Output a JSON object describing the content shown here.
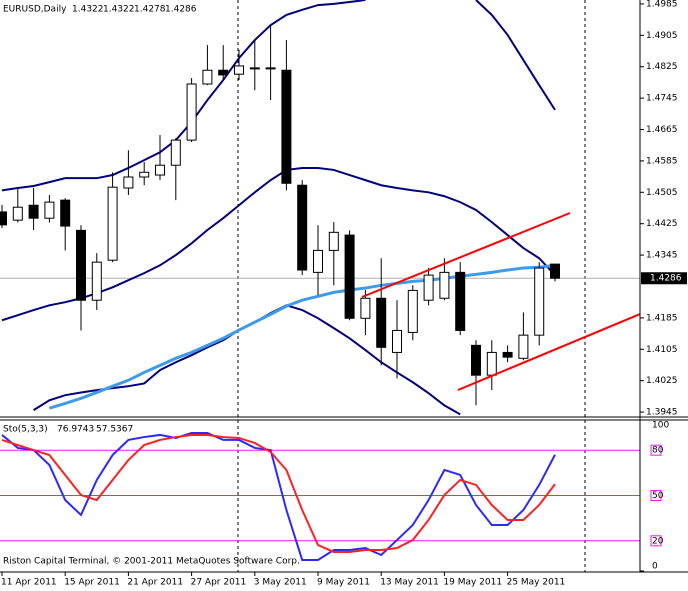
{
  "chart_data": [
    {
      "type": "candlestick",
      "title": "EURUSD,Daily",
      "categories": [
        "11 Apr 2011",
        null,
        null,
        null,
        "15 Apr 2011",
        null,
        null,
        null,
        "21 Apr 2011",
        null,
        null,
        null,
        "27 Apr 2011",
        null,
        null,
        null,
        "3 May 2011",
        null,
        null,
        null,
        "9 May 2011",
        null,
        null,
        null,
        "13 May 2011",
        null,
        null,
        null,
        "19 May 2011",
        null,
        null,
        null,
        "25 May 2011",
        null,
        null,
        null
      ],
      "open": [
        1.4455,
        1.4434,
        1.4472,
        1.4439,
        1.4485,
        1.4408,
        1.423,
        1.4332,
        1.4516,
        1.4544,
        1.4549,
        1.4574,
        1.4638,
        1.4781,
        1.4816,
        1.4806,
        1.4822,
        1.4822,
        1.4816,
        1.4523,
        1.4301,
        1.4357,
        1.4396,
        1.4184,
        1.4235,
        1.4097,
        1.4148,
        1.423,
        1.4235,
        1.4301,
        1.4115,
        1.4039,
        1.4097,
        1.4082,
        1.4141,
        1.4322
      ],
      "high": [
        1.4473,
        1.4516,
        1.4516,
        1.4498,
        1.449,
        1.4421,
        1.435,
        1.4556,
        1.4612,
        1.4582,
        1.4651,
        1.4643,
        1.4796,
        1.488,
        1.488,
        1.4868,
        1.4893,
        1.4931,
        1.4893,
        1.4536,
        1.4421,
        1.4429,
        1.4408,
        1.4256,
        1.4337,
        1.423,
        1.4268,
        1.4312,
        1.4337,
        1.4327,
        1.4128,
        1.4128,
        1.4115,
        1.4199,
        1.4327,
        1.4322
      ],
      "low": [
        1.4414,
        1.4428,
        1.4409,
        1.4428,
        1.4357,
        1.4153,
        1.4205,
        1.4327,
        1.4498,
        1.4523,
        1.4536,
        1.4485,
        1.4633,
        1.4778,
        1.4791,
        1.4791,
        1.4765,
        1.474,
        1.451,
        1.4294,
        1.4243,
        1.4268,
        1.4179,
        1.4141,
        1.4064,
        1.4031,
        1.4128,
        1.4217,
        1.423,
        1.4141,
        1.3962,
        1.4001,
        1.4072,
        1.4077,
        1.4115,
        1.4278
      ],
      "close": [
        1.4422,
        1.4467,
        1.4439,
        1.448,
        1.4419,
        1.423,
        1.4327,
        1.4518,
        1.4544,
        1.4556,
        1.4574,
        1.4638,
        1.4781,
        1.4816,
        1.4804,
        1.4827,
        1.4821,
        1.482,
        1.4528,
        1.4307,
        1.4357,
        1.4403,
        1.4184,
        1.4235,
        1.411,
        1.4153,
        1.4255,
        1.4294,
        1.4301,
        1.4153,
        1.4039,
        1.4097,
        1.4085,
        1.4141,
        1.4312,
        1.4286
      ],
      "lines": [
        {
          "color": "#00007f",
          "values": [
            1.451,
            1.4516,
            1.4521,
            1.4531,
            1.4541,
            1.4541,
            1.4541,
            1.4549,
            1.4567,
            1.4587,
            1.4607,
            1.4638,
            1.4684,
            1.474,
            1.4791,
            1.4847,
            1.4893,
            1.4931,
            1.4957,
            1.497,
            1.4982,
            1.4985,
            1.499,
            1.4995,
            null,
            null,
            null,
            null,
            null,
            null,
            1.4995,
            1.4957,
            1.4906,
            1.4842,
            1.4778,
            1.4715
          ]
        },
        {
          "color": "#00007f",
          "values": [
            1.4179,
            1.4192,
            1.4205,
            1.4217,
            1.4225,
            1.4235,
            1.4248,
            1.4263,
            1.4281,
            1.4299,
            1.4319,
            1.4345,
            1.4375,
            1.4409,
            1.4439,
            1.4472,
            1.4505,
            1.4536,
            1.4562,
            1.4567,
            1.4567,
            1.4562,
            1.4549,
            1.4536,
            1.4523,
            1.4516,
            1.451,
            1.4505,
            1.4495,
            1.448,
            1.446,
            1.4429,
            1.4396,
            1.4363,
            1.4337,
            1.4294
          ]
        },
        {
          "color": "#00007f",
          "values": [
            null,
            null,
            1.395,
            1.3975,
            1.3988,
            1.3995,
            1.4001,
            1.4006,
            1.4011,
            1.4018,
            1.4052,
            1.4072,
            1.409,
            1.411,
            1.4128,
            1.4154,
            1.4174,
            1.4197,
            1.4217,
            1.4205,
            1.4184,
            1.4159,
            1.4133,
            1.4103,
            1.4072,
            1.4046,
            1.4021,
            1.3993,
            1.3962,
            1.3939,
            null,
            null,
            null,
            null,
            null,
            null
          ]
        },
        {
          "color": "#3d9be9",
          "values": [
            null,
            null,
            null,
            1.3955,
            1.3967,
            1.398,
            1.3995,
            1.4011,
            1.4026,
            1.4046,
            1.4064,
            1.4082,
            1.4097,
            1.4115,
            1.4133,
            1.4154,
            1.4174,
            1.4194,
            1.4215,
            1.423,
            1.424,
            1.425,
            1.4256,
            1.4261,
            1.4268,
            1.4273,
            1.4278,
            1.4281,
            1.4286,
            1.4291,
            1.4296,
            1.4301,
            1.4307,
            1.4312,
            1.4314,
            1.4319
          ]
        }
      ],
      "ylim": [
        1.3935,
        1.4995
      ],
      "yticks": [
        1.4985,
        1.4905,
        1.4825,
        1.4745,
        1.4665,
        1.4585,
        1.4505,
        1.4425,
        1.4345,
        1.4185,
        1.4105,
        1.4025,
        1.3945
      ]
    },
    {
      "type": "line",
      "title": "Sto(5,3,3)",
      "series": [
        {
          "color": "#2a2aff",
          "values": [
            90.1,
            81.5,
            80.1,
            70.2,
            47.0,
            37.1,
            60.3,
            76.8,
            86.8,
            88.7,
            90.1,
            88.1,
            91.4,
            91.4,
            86.8,
            86.8,
            81.5,
            80.1,
            40.4,
            7.3,
            7.3,
            13.9,
            13.9,
            15.2,
            10.6,
            20.5,
            30.5,
            47.0,
            66.9,
            63.6,
            43.7,
            30.5,
            30.5,
            40.4,
            57.0,
            76.9743
          ]
        },
        {
          "color": "#ff2020",
          "values": [
            86.8,
            83.4,
            80.1,
            76.8,
            63.6,
            50.3,
            47.0,
            60.3,
            73.5,
            83.4,
            86.8,
            88.7,
            90.1,
            90.1,
            88.7,
            88.1,
            84.8,
            78.8,
            66.9,
            40.4,
            17.2,
            12.6,
            12.6,
            13.9,
            13.9,
            15.2,
            20.5,
            33.8,
            50.3,
            60.3,
            57.0,
            43.7,
            33.8,
            33.8,
            43.7,
            57.5367
          ]
        }
      ],
      "ylim": [
        0,
        100
      ],
      "yticks": [
        100,
        80,
        50,
        20,
        0
      ],
      "level_color": "#e020e0"
    },
    {
      "type": "footer",
      "text": "Riston Capital Terminal, © 2001-2011 MetaQuotes Software Corp."
    }
  ]
}
